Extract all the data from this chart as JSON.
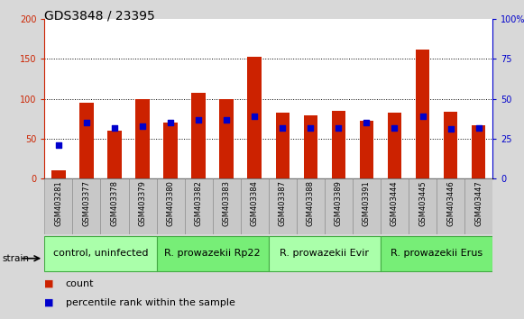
{
  "title": "GDS3848 / 23395",
  "samples": [
    "GSM403281",
    "GSM403377",
    "GSM403378",
    "GSM403379",
    "GSM403380",
    "GSM403382",
    "GSM403383",
    "GSM403384",
    "GSM403387",
    "GSM403388",
    "GSM403389",
    "GSM403391",
    "GSM403444",
    "GSM403445",
    "GSM403446",
    "GSM403447"
  ],
  "count_values": [
    10,
    95,
    60,
    100,
    70,
    108,
    100,
    153,
    83,
    79,
    85,
    73,
    83,
    162,
    84,
    67
  ],
  "percentile_values": [
    21,
    35,
    32,
    33,
    35,
    37,
    37,
    39,
    32,
    32,
    32,
    35,
    32,
    39,
    31,
    32
  ],
  "groups": [
    {
      "label": "control, uninfected",
      "start": 0,
      "end": 4,
      "color": "#aaffaa"
    },
    {
      "label": "R. prowazekii Rp22",
      "start": 4,
      "end": 8,
      "color": "#77ee77"
    },
    {
      "label": "R. prowazekii Evir",
      "start": 8,
      "end": 12,
      "color": "#aaffaa"
    },
    {
      "label": "R. prowazekii Erus",
      "start": 12,
      "end": 16,
      "color": "#77ee77"
    }
  ],
  "bar_color": "#cc2200",
  "dot_color": "#0000cc",
  "left_axis_color": "#cc2200",
  "right_axis_color": "#0000cc",
  "ylim_left": [
    0,
    200
  ],
  "ylim_right": [
    0,
    100
  ],
  "yticks_left": [
    0,
    50,
    100,
    150,
    200
  ],
  "yticks_right": [
    0,
    25,
    50,
    75,
    100
  ],
  "bar_width": 0.5,
  "dot_size": 18,
  "legend_count": "count",
  "legend_percentile": "percentile rank within the sample",
  "strain_label": "strain",
  "bg_color": "#d8d8d8",
  "plot_bg_color": "#ffffff",
  "grid_color": "#000000",
  "title_fontsize": 10,
  "tick_fontsize": 7,
  "label_fontsize": 6,
  "group_fontsize": 8,
  "legend_fontsize": 8,
  "right_tick_labels": [
    "0",
    "25",
    "50",
    "75",
    "100%"
  ]
}
